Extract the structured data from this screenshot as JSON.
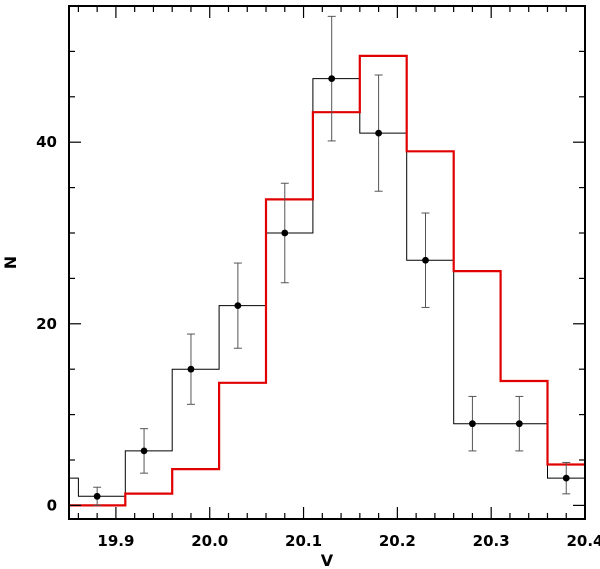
{
  "chart_data": {
    "type": "histogram",
    "xlabel": "V",
    "ylabel": "N",
    "xlim": [
      19.85,
      20.4
    ],
    "ylim": [
      -1.5,
      55
    ],
    "x_ticks": [
      "19.9",
      "20.0",
      "20.1",
      "20.2",
      "20.3",
      "20.4"
    ],
    "y_ticks": [
      "0",
      "20",
      "40"
    ],
    "bin_edges": [
      19.85,
      19.86,
      19.91,
      19.96,
      20.01,
      20.06,
      20.11,
      20.16,
      20.21,
      20.26,
      20.31,
      20.36,
      20.4
    ],
    "series": [
      {
        "style": "black-histogram-with-errorbars",
        "color": "#000000",
        "bin_edges": [
          19.85,
          19.86,
          19.91,
          19.96,
          20.01,
          20.06,
          20.11,
          20.16,
          20.21,
          20.26,
          20.31,
          20.36,
          20.4
        ],
        "counts": [
          3,
          1,
          6,
          15,
          22,
          30,
          47,
          41,
          27,
          9,
          9,
          3
        ],
        "points": [
          {
            "x": 19.88,
            "y": 1,
            "err": 1.0
          },
          {
            "x": 19.93,
            "y": 6,
            "err": 2.45
          },
          {
            "x": 19.98,
            "y": 15,
            "err": 3.87
          },
          {
            "x": 20.03,
            "y": 22,
            "err": 4.69
          },
          {
            "x": 20.08,
            "y": 30,
            "err": 5.48
          },
          {
            "x": 20.13,
            "y": 47,
            "err": 6.86
          },
          {
            "x": 20.18,
            "y": 41,
            "err": 6.4
          },
          {
            "x": 20.23,
            "y": 27,
            "err": 5.2
          },
          {
            "x": 20.28,
            "y": 9,
            "err": 3.0
          },
          {
            "x": 20.33,
            "y": 9,
            "err": 3.0
          },
          {
            "x": 20.38,
            "y": 3,
            "err": 1.73
          }
        ]
      },
      {
        "style": "red-histogram",
        "color": "#e00000",
        "bin_edges": [
          19.85,
          19.86,
          19.91,
          19.96,
          20.01,
          20.06,
          20.11,
          20.16,
          20.21,
          20.26,
          20.31,
          20.36,
          20.4
        ],
        "counts": [
          0,
          0,
          1.3,
          4,
          13.5,
          33.7,
          43.3,
          49.5,
          39,
          25.8,
          13.7,
          4.5
        ]
      }
    ]
  }
}
